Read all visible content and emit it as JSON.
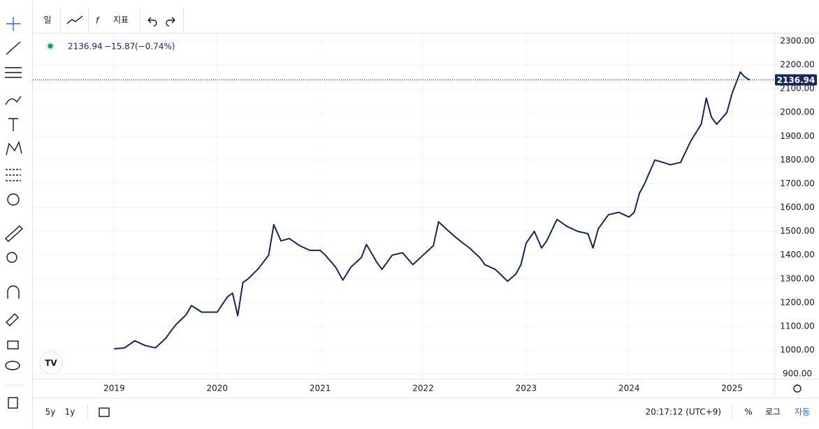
{
  "chart_data": {
    "type": "line",
    "legend": {
      "change": "−15.87",
      "change_pct": "(−0.74%)"
    },
    "toolbar": {
      "interval": "일",
      "indicators": "지표"
    },
    "bottom_bar": {
      "ranges": [
        "5y",
        "1y"
      ],
      "time": "20:17:12 (UTC+9)",
      "percent": "%",
      "log": "로그",
      "auto": "자동"
    },
    "color": "#14265c",
    "x": [
      2019.0,
      2019.1,
      2019.2,
      2019.3,
      2019.4,
      2019.5,
      2019.55,
      2019.6,
      2019.7,
      2019.75,
      2019.85,
      2020.0,
      2020.1,
      2020.15,
      2020.2,
      2020.25,
      2020.3,
      2020.4,
      2020.5,
      2020.55,
      2020.62,
      2020.7,
      2020.8,
      2020.9,
      2021.0,
      2021.05,
      2021.15,
      2021.22,
      2021.3,
      2021.4,
      2021.45,
      2021.55,
      2021.6,
      2021.7,
      2021.8,
      2021.9,
      2022.0,
      2022.1,
      2022.15,
      2022.25,
      2022.33,
      2022.45,
      2022.55,
      2022.6,
      2022.7,
      2022.75,
      2022.82,
      2022.9,
      2022.95,
      2023.0,
      2023.08,
      2023.15,
      2023.2,
      2023.3,
      2023.4,
      2023.5,
      2023.6,
      2023.65,
      2023.7,
      2023.8,
      2023.9,
      2024.0,
      2024.05,
      2024.1,
      2024.15,
      2024.25,
      2024.33,
      2024.4,
      2024.5,
      2024.6,
      2024.7,
      2024.75,
      2024.8,
      2024.85,
      2024.95,
      2025.0,
      2025.08,
      2025.12,
      2025.17
    ],
    "values": [
      1006,
      1010,
      1040,
      1020,
      1010,
      1050,
      1080,
      1108,
      1150,
      1188,
      1160,
      1160,
      1225,
      1240,
      1145,
      1285,
      1300,
      1343,
      1400,
      1528,
      1460,
      1470,
      1440,
      1420,
      1420,
      1400,
      1350,
      1295,
      1350,
      1390,
      1445,
      1370,
      1340,
      1400,
      1410,
      1360,
      1400,
      1440,
      1540,
      1500,
      1470,
      1430,
      1390,
      1360,
      1340,
      1320,
      1290,
      1320,
      1360,
      1450,
      1500,
      1430,
      1460,
      1550,
      1520,
      1500,
      1490,
      1430,
      1510,
      1570,
      1580,
      1560,
      1580,
      1660,
      1700,
      1800,
      1790,
      1780,
      1790,
      1880,
      1950,
      2060,
      1980,
      1950,
      2000,
      2080,
      2170,
      2150,
      2136.94
    ],
    "xlim": [
      2018.21,
      2025.41
    ],
    "xticks": [
      2019,
      2020,
      2021,
      2022,
      2023,
      2024,
      2025
    ],
    "ylim": [
      880,
      2332
    ],
    "yticks": [
      {
        "value": 900,
        "label": "900.00"
      },
      {
        "value": 1000,
        "label": "1000.00"
      },
      {
        "value": 1100,
        "label": "1100.00"
      },
      {
        "value": 1200,
        "label": "1200.00"
      },
      {
        "value": 1300,
        "label": "1300.00"
      },
      {
        "value": 1400,
        "label": "1400.00"
      },
      {
        "value": 1500,
        "label": "1500.00"
      },
      {
        "value": 1600,
        "label": "1600.00"
      },
      {
        "value": 1700,
        "label": "1700.00"
      },
      {
        "value": 1800,
        "label": "1800.00"
      },
      {
        "value": 1900,
        "label": "1900.00"
      },
      {
        "value": 2000,
        "label": "2000.00"
      },
      {
        "value": 2100,
        "label": "2100.00"
      },
      {
        "value": 2200,
        "label": "2200.00"
      },
      {
        "value": 2300,
        "label": "2300.00"
      }
    ],
    "grid": true
  }
}
